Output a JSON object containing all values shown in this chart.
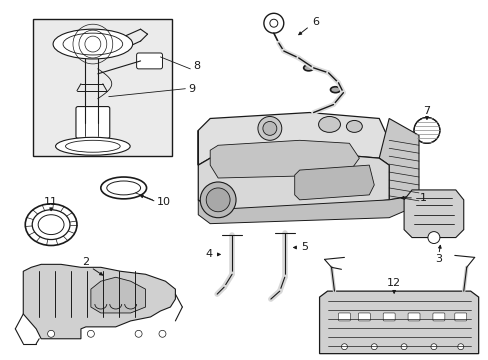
{
  "bg_color": "#ffffff",
  "line_color": "#1a1a1a",
  "inset_bg": "#ebebeb",
  "gray_fill": "#cccccc",
  "mid_gray": "#b0b0b0"
}
